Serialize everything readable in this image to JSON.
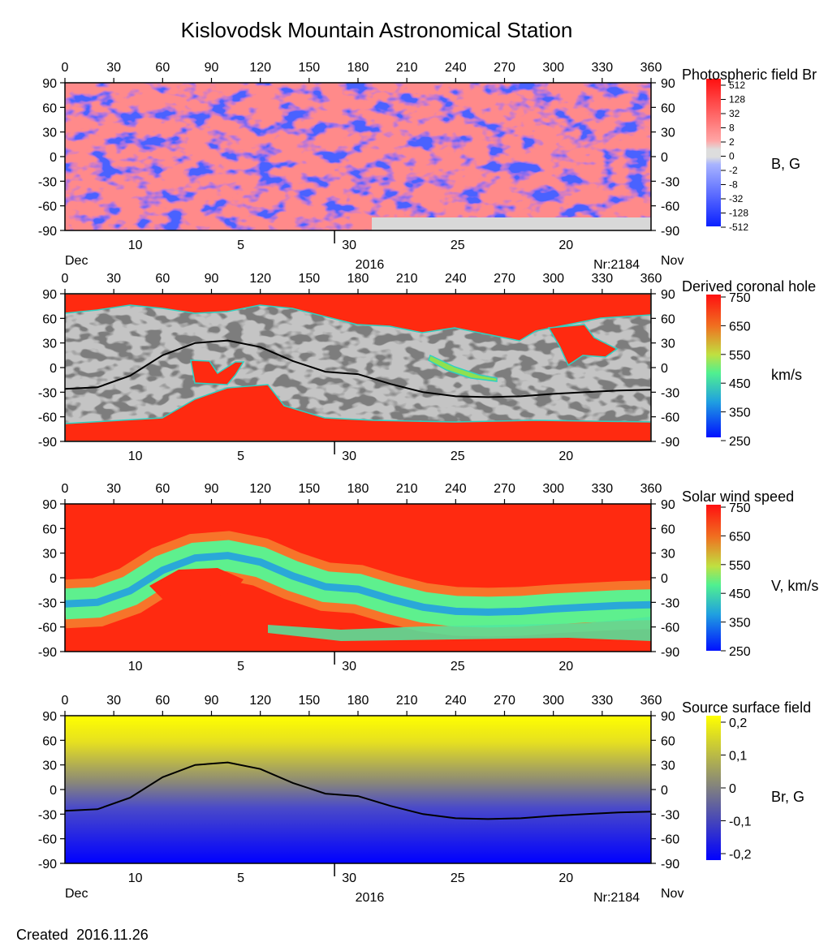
{
  "page": {
    "title": "Kislovodsk Mountain Astronomical Station",
    "created_label": "Created",
    "created_date": "2016.11.26"
  },
  "chart_data": [
    {
      "type": "heatmap",
      "title": "Photospheric field Br",
      "colorbar_label": "B, G",
      "colorbar_ticks": [
        "512",
        "128",
        "32",
        "8",
        "2",
        "0",
        "-2",
        "-8",
        "-32",
        "-128",
        "-512"
      ],
      "colorscale": "diverging red-white-blue, log-spaced",
      "colors": {
        "positive": "#ff4a4a",
        "zero": "#d8d8d8",
        "negative": "#1e3cff"
      },
      "x_top_ticks": [
        0,
        30,
        60,
        90,
        120,
        150,
        180,
        210,
        240,
        270,
        300,
        330,
        360
      ],
      "y_ticks": [
        90,
        60,
        30,
        0,
        -30,
        -60,
        -90
      ],
      "xlim": [
        0,
        360
      ],
      "ylim": [
        -90,
        90
      ],
      "date_ticks": [
        "10",
        "5",
        "30",
        "25",
        "20"
      ],
      "month_left": "Dec",
      "year": "2016",
      "rotation": "Nr:2184",
      "month_right": "Nov"
    },
    {
      "type": "heatmap",
      "title": "Derived coronal hole",
      "colorbar_label": "km/s",
      "colorbar_ticks": [
        "750",
        "650",
        "550",
        "450",
        "350",
        "250"
      ],
      "colors": {
        "fast": "#ff2a10",
        "slow": "#1a2bff",
        "background_light": "#c0c0c0",
        "background_dark": "#808080"
      },
      "x_top_ticks": [
        0,
        30,
        60,
        90,
        120,
        150,
        180,
        210,
        240,
        270,
        300,
        330,
        360
      ],
      "y_ticks": [
        90,
        60,
        30,
        0,
        -30,
        -60,
        -90
      ],
      "xlim": [
        0,
        360
      ],
      "ylim": [
        -90,
        90
      ],
      "date_ticks": [
        "10",
        "5",
        "30",
        "25",
        "20"
      ],
      "neutral_line": {
        "x": [
          0,
          20,
          40,
          60,
          80,
          100,
          120,
          140,
          160,
          180,
          200,
          220,
          240,
          260,
          280,
          300,
          320,
          340,
          360
        ],
        "y": [
          -26,
          -24,
          -10,
          15,
          30,
          33,
          25,
          8,
          -5,
          -8,
          -20,
          -30,
          -35,
          -36,
          -35,
          -32,
          -30,
          -28,
          -27
        ]
      }
    },
    {
      "type": "heatmap",
      "title": "Solar wind speed",
      "colorbar_label": "V, km/s",
      "colorbar_ticks": [
        "750",
        "650",
        "550",
        "450",
        "350",
        "250"
      ],
      "colors": {
        "fast": "#ff2a10",
        "mid": "#50f08a",
        "slow": "#1a2bff"
      },
      "x_top_ticks": [
        0,
        30,
        60,
        90,
        120,
        150,
        180,
        210,
        240,
        270,
        300,
        330,
        360
      ],
      "y_ticks": [
        90,
        60,
        30,
        0,
        -30,
        -60,
        -90
      ],
      "xlim": [
        0,
        360
      ],
      "ylim": [
        -90,
        90
      ],
      "date_ticks": [
        "10",
        "5",
        "30",
        "25",
        "20"
      ]
    },
    {
      "type": "heatmap",
      "title": "Source surface field",
      "colorbar_label": "Br, G",
      "colorbar_ticks": [
        "0,2",
        "0,1",
        "0",
        "-0,1",
        "-0,2"
      ],
      "colors": {
        "positive": "#ffff00",
        "zero": "#808080",
        "negative": "#0000ff"
      },
      "x_top_ticks": [
        0,
        30,
        60,
        90,
        120,
        150,
        180,
        210,
        240,
        270,
        300,
        330,
        360
      ],
      "y_ticks": [
        90,
        60,
        30,
        0,
        -30,
        -60,
        -90
      ],
      "xlim": [
        0,
        360
      ],
      "ylim": [
        -90,
        90
      ],
      "date_ticks": [
        "10",
        "5",
        "30",
        "25",
        "20"
      ],
      "month_left": "Dec",
      "year": "2016",
      "rotation": "Nr:2184",
      "month_right": "Nov",
      "neutral_line": {
        "x": [
          0,
          20,
          40,
          60,
          80,
          100,
          120,
          140,
          160,
          180,
          200,
          220,
          240,
          260,
          280,
          300,
          320,
          340,
          360
        ],
        "y": [
          -26,
          -24,
          -10,
          15,
          30,
          33,
          25,
          8,
          -5,
          -8,
          -20,
          -30,
          -35,
          -36,
          -35,
          -32,
          -30,
          -28,
          -27
        ]
      }
    }
  ]
}
